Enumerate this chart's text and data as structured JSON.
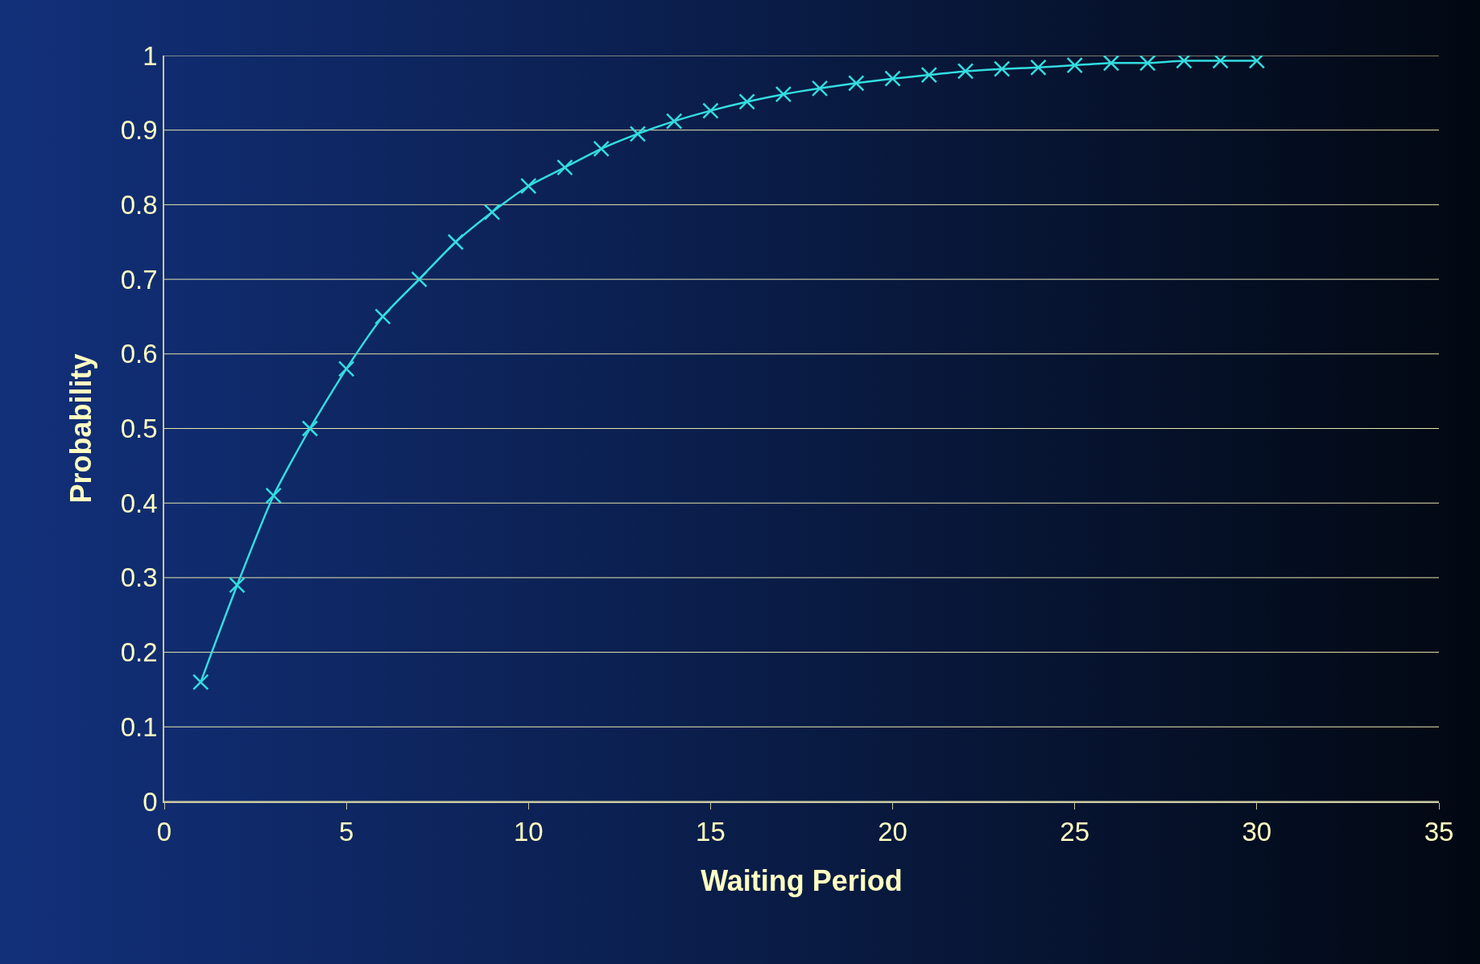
{
  "chart_data": {
    "type": "line",
    "xlabel": "Waiting Period",
    "ylabel": "Probability",
    "x": [
      1,
      2,
      3,
      4,
      5,
      6,
      7,
      8,
      9,
      10,
      11,
      12,
      13,
      14,
      15,
      16,
      17,
      18,
      19,
      20,
      21,
      22,
      23,
      24,
      25,
      26,
      27,
      28,
      29,
      30
    ],
    "series": [
      {
        "color": "#33dde0",
        "values": [
          0.16,
          0.29,
          0.41,
          0.5,
          0.58,
          0.65,
          0.7,
          0.75,
          0.79,
          0.825,
          0.85,
          0.875,
          0.895,
          0.912,
          0.926,
          0.938,
          0.948,
          0.956,
          0.963,
          0.969,
          0.974,
          0.979,
          0.982,
          0.984,
          0.987,
          0.99,
          0.99,
          0.993,
          0.993,
          0.993
        ]
      }
    ],
    "xlim": [
      0,
      35
    ],
    "xticks": [
      0,
      5,
      10,
      15,
      20,
      25,
      30,
      35
    ],
    "ylim": [
      0,
      1
    ],
    "yticks": [
      0,
      0.1,
      0.2,
      0.3,
      0.4,
      0.5,
      0.6,
      0.7,
      0.8,
      0.9,
      1
    ],
    "grid": "y",
    "marker": "cross",
    "line_style": "solid"
  }
}
